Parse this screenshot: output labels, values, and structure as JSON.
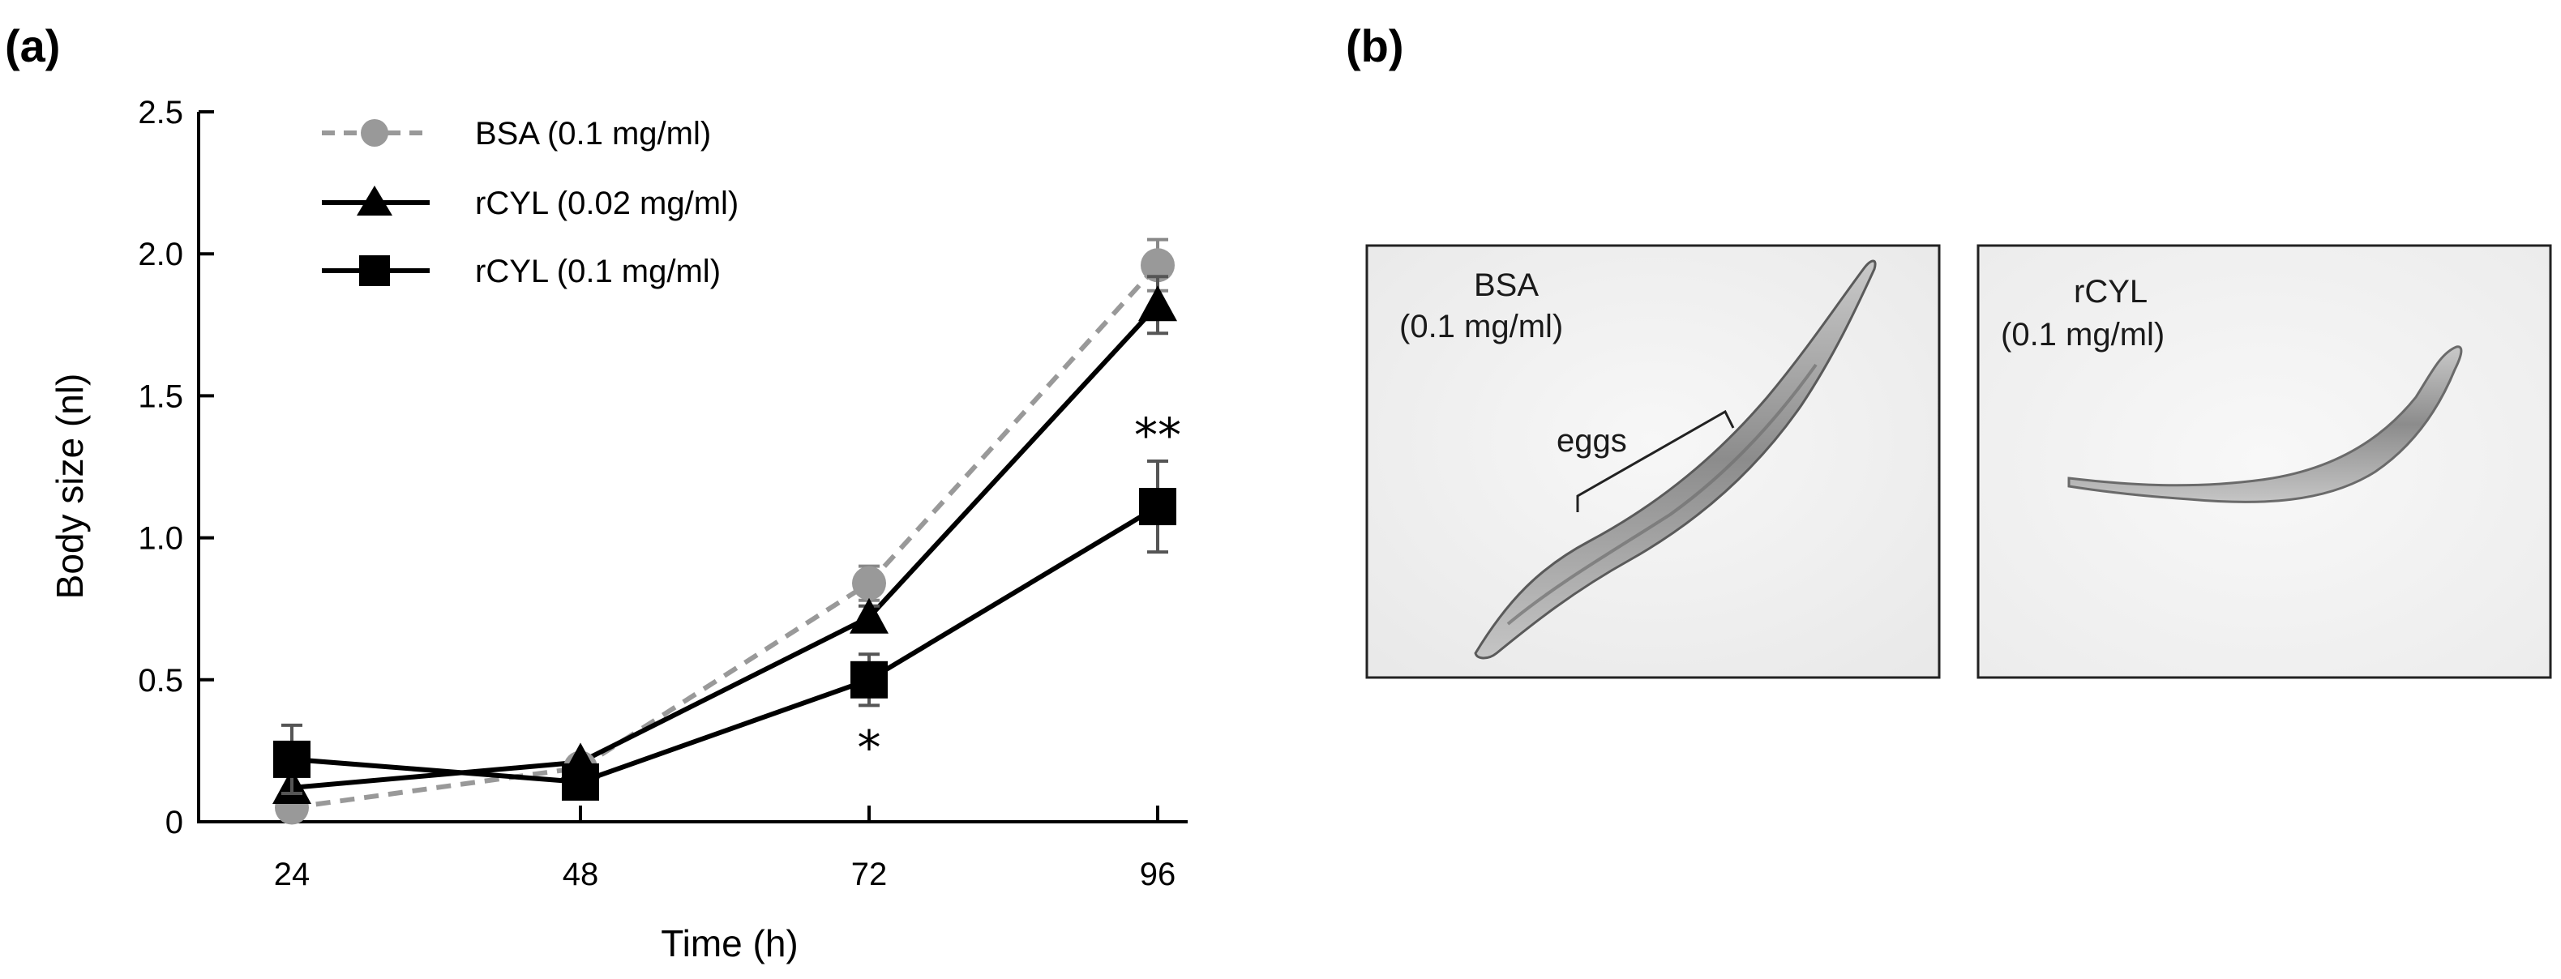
{
  "panels": {
    "a_label": "(a)",
    "b_label": "(b)"
  },
  "chart_data": {
    "type": "line",
    "title": "",
    "xlabel": "Time (h)",
    "ylabel": "Body size (nl)",
    "x": [
      24,
      48,
      72,
      96
    ],
    "x_tick_labels": [
      "24",
      "48",
      "72",
      "96"
    ],
    "y_ticks": [
      0,
      0.5,
      1.0,
      1.5,
      2.0,
      2.5
    ],
    "y_tick_labels": [
      "0",
      "0.5",
      "1.0",
      "1.5",
      "2.0",
      "2.5"
    ],
    "ylim": [
      0,
      2.5
    ],
    "legend_position": "top-left",
    "series": [
      {
        "name": "BSA (0.1 mg/ml)",
        "marker": "circle",
        "line": "dashed",
        "color": "#999999",
        "values": [
          0.05,
          0.19,
          0.84,
          1.96
        ],
        "errors": [
          0.0,
          0.0,
          0.06,
          0.09
        ]
      },
      {
        "name": "rCYL (0.02 mg/ml)",
        "marker": "triangle",
        "line": "solid",
        "color": "#000000",
        "values": [
          0.12,
          0.21,
          0.72,
          1.82
        ],
        "errors": [
          0.0,
          0.0,
          0.04,
          0.1
        ]
      },
      {
        "name": "rCYL (0.1 mg/ml)",
        "marker": "square",
        "line": "solid",
        "color": "#000000",
        "values": [
          0.22,
          0.14,
          0.5,
          1.11
        ],
        "errors": [
          0.12,
          0.03,
          0.09,
          0.16
        ]
      }
    ],
    "annotations": [
      {
        "x": 72,
        "text": "*"
      },
      {
        "x": 96,
        "text": "**"
      }
    ]
  },
  "micrographs": {
    "left": {
      "label_line1": "BSA",
      "label_line2": "(0.1 mg/ml)",
      "annotation": "eggs"
    },
    "right": {
      "label_line1": "rCYL",
      "label_line2": "(0.1 mg/ml)"
    }
  }
}
